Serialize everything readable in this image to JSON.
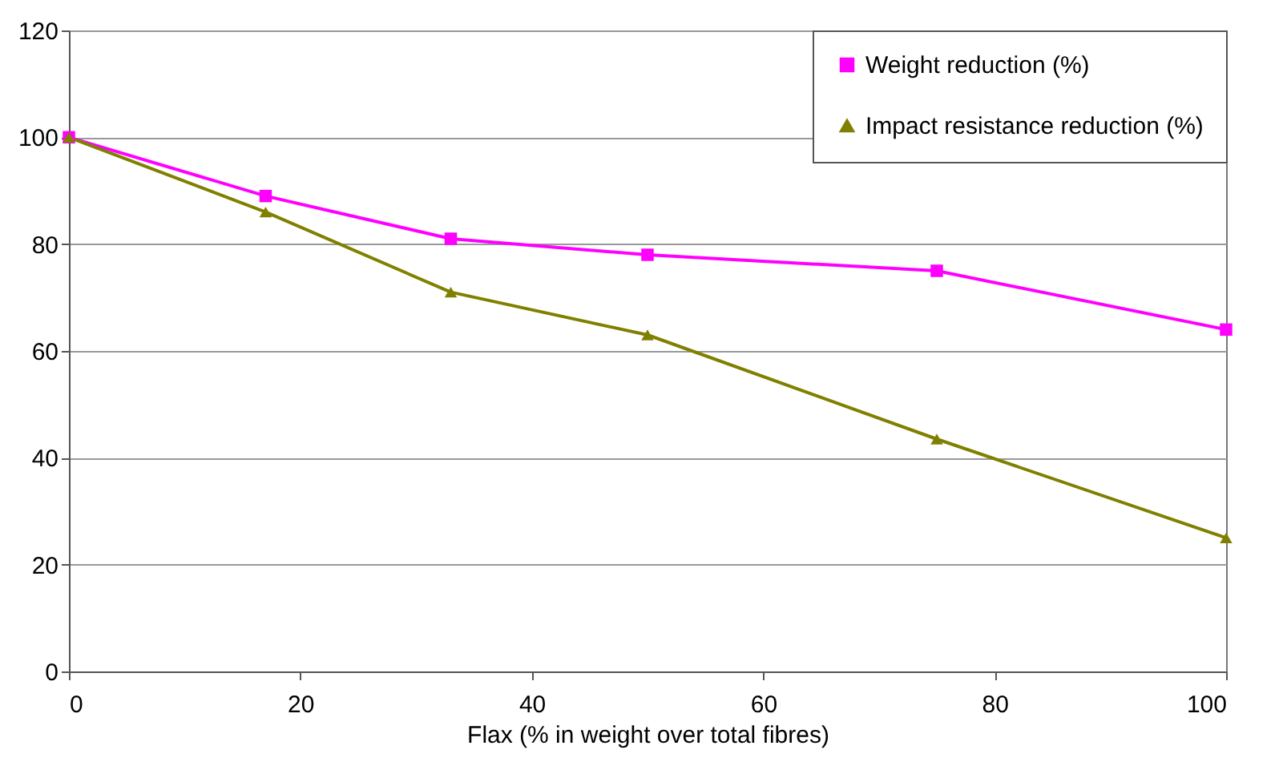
{
  "chart_data": {
    "type": "line",
    "xlabel": "Flax (% in weight over total fibres)",
    "x": [
      0,
      17,
      33,
      50,
      75,
      100
    ],
    "series": [
      {
        "name": "Weight reduction (%)",
        "color": "#ff00ff",
        "marker": "square",
        "values": [
          100,
          89,
          81,
          78,
          75,
          64
        ]
      },
      {
        "name": "Impact resistance reduction (%)",
        "color": "#808000",
        "marker": "triangle",
        "values": [
          100,
          86,
          71,
          63,
          43.5,
          25
        ]
      }
    ],
    "xlim": [
      0,
      100
    ],
    "xticks": [
      0,
      20,
      40,
      60,
      80,
      100
    ],
    "ylim": [
      0,
      120
    ],
    "yticks": [
      0,
      20,
      40,
      60,
      80,
      100,
      120
    ],
    "grid": "y",
    "legend": "top right"
  }
}
